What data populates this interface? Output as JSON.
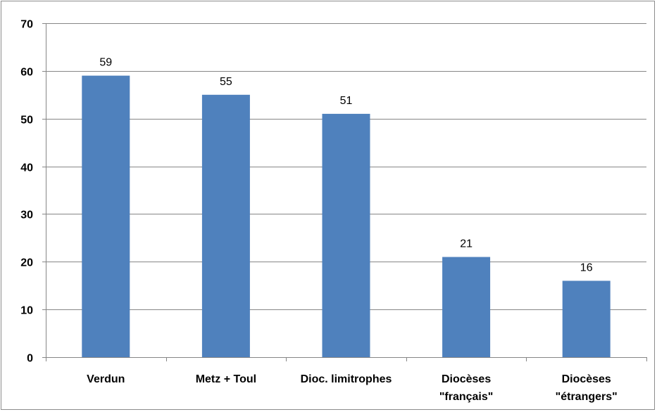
{
  "chart_data": {
    "type": "bar",
    "categories": [
      [
        "Verdun"
      ],
      [
        "Metz + Toul"
      ],
      [
        "Dioc. limitrophes"
      ],
      [
        "Diocèses",
        "\"français\""
      ],
      [
        "Diocèses",
        "\"étrangers\""
      ]
    ],
    "values": [
      59,
      55,
      51,
      21,
      16
    ],
    "data_labels": [
      "59",
      "55",
      "51",
      "21",
      "16"
    ],
    "title": "",
    "xlabel": "",
    "ylabel": "",
    "ylim": [
      0,
      70
    ],
    "yticks": [
      "0",
      "10",
      "20",
      "30",
      "40",
      "50",
      "60",
      "70"
    ],
    "grid": true,
    "legend": "none",
    "bar_color": "#4f81bd",
    "gridline_color": "#868686",
    "axis_color": "#868686"
  }
}
